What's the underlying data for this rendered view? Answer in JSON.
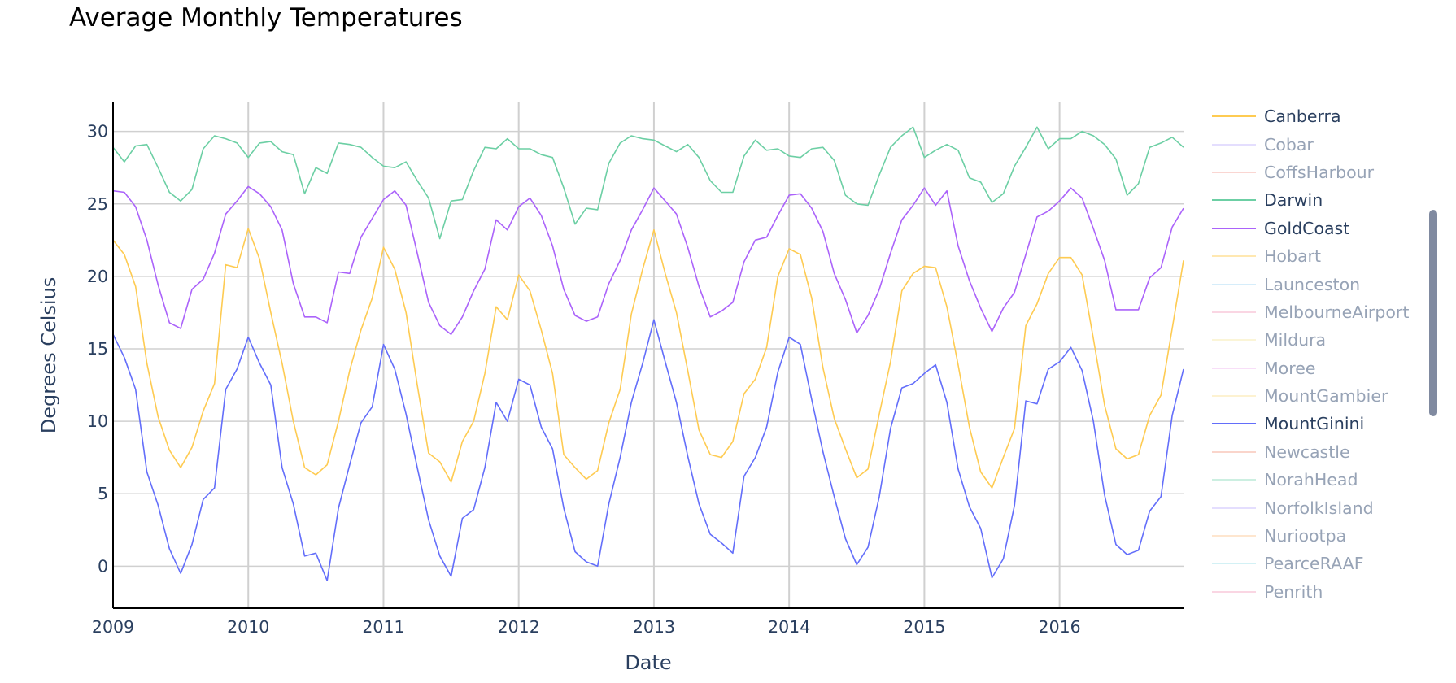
{
  "chart_data": {
    "type": "line",
    "title": "Average Monthly Temperatures",
    "xlabel": "Date",
    "ylabel": "Degrees Celsius",
    "x_start": "2009-01",
    "x_step": "month",
    "xlim": [
      "2009-01",
      "2016-12"
    ],
    "ylim": [
      -2.9,
      32
    ],
    "x_ticks": [
      "2009",
      "2010",
      "2011",
      "2012",
      "2013",
      "2014",
      "2015",
      "2016"
    ],
    "y_ticks": [
      0,
      5,
      10,
      15,
      20,
      25,
      30
    ],
    "grid": true,
    "legend_position": "right",
    "series": [
      {
        "name": "Canberra",
        "color": "#fecb52",
        "visible": true,
        "values": [
          22.5,
          21.5,
          19.3,
          14,
          10.3,
          8,
          6.8,
          8.2,
          10.7,
          12.6,
          20.8,
          20.6,
          23.3,
          21.2,
          17.5,
          14,
          10,
          6.8,
          6.3,
          7,
          10,
          13.5,
          16.3,
          18.5,
          22,
          20.5,
          17.5,
          12.5,
          7.8,
          7.2,
          5.8,
          8.6,
          10,
          13.3,
          17.9,
          17,
          20.1,
          19,
          16.3,
          13.3,
          7.7,
          6.8,
          6,
          6.6,
          9.9,
          12.2,
          17.4,
          20.5,
          23.2,
          20.2,
          17.5,
          13.5,
          9.4,
          7.7,
          7.5,
          8.6,
          11.9,
          12.9,
          15.1,
          20,
          21.9,
          21.5,
          18.5,
          13.7,
          10.2,
          8.1,
          6.1,
          6.7,
          10.5,
          14.1,
          19,
          20.2,
          20.7,
          20.6,
          17.9,
          13.9,
          9.6,
          6.5,
          5.4,
          7.5,
          9.5,
          16.6,
          18.1,
          20.2,
          21.3,
          21.3,
          20.1,
          15.7,
          11.1,
          8.1,
          7.4,
          7.7,
          10.4,
          11.8,
          16.4,
          21.1
        ]
      },
      {
        "name": "Cobar",
        "color": "#c4b5fd",
        "visible": false,
        "values": []
      },
      {
        "name": "CoffsHarbour",
        "color": "#f4a59c",
        "visible": false,
        "values": []
      },
      {
        "name": "Darwin",
        "color": "#6ccfa4",
        "visible": true,
        "values": [
          28.9,
          27.9,
          29,
          29.1,
          27.5,
          25.8,
          25.2,
          26,
          28.8,
          29.7,
          29.5,
          29.2,
          28.2,
          29.2,
          29.3,
          28.6,
          28.4,
          25.7,
          27.5,
          27.1,
          29.2,
          29.1,
          28.9,
          28.2,
          27.6,
          27.5,
          27.9,
          26.6,
          25.4,
          22.6,
          25.2,
          25.3,
          27.3,
          28.9,
          28.8,
          29.5,
          28.8,
          28.8,
          28.4,
          28.2,
          26.1,
          23.6,
          24.7,
          24.6,
          27.8,
          29.2,
          29.7,
          29.5,
          29.4,
          29,
          28.6,
          29.1,
          28.2,
          26.6,
          25.8,
          25.8,
          28.3,
          29.4,
          28.7,
          28.8,
          28.3,
          28.2,
          28.8,
          28.9,
          28,
          25.6,
          25,
          24.9,
          27,
          28.9,
          29.7,
          30.3,
          28.2,
          28.7,
          29.1,
          28.7,
          26.8,
          26.5,
          25.1,
          25.7,
          27.6,
          28.9,
          30.3,
          28.8,
          29.5,
          29.5,
          30,
          29.7,
          29.1,
          28.1,
          25.6,
          26.4,
          28.9,
          29.2,
          29.6,
          28.9
        ]
      },
      {
        "name": "GoldCoast",
        "color": "#ab63fa",
        "visible": true,
        "values": [
          25.9,
          25.8,
          24.8,
          22.5,
          19.4,
          16.8,
          16.4,
          19.1,
          19.8,
          21.6,
          24.3,
          25.2,
          26.2,
          25.7,
          24.8,
          23.2,
          19.5,
          17.2,
          17.2,
          16.8,
          20.3,
          20.2,
          22.7,
          24,
          25.3,
          25.9,
          24.9,
          21.6,
          18.2,
          16.6,
          16,
          17.2,
          19,
          20.5,
          23.9,
          23.2,
          24.8,
          25.4,
          24.2,
          22.1,
          19.1,
          17.3,
          16.9,
          17.2,
          19.5,
          21.1,
          23.2,
          24.6,
          26.1,
          25.2,
          24.3,
          22,
          19.3,
          17.2,
          17.6,
          18.2,
          21,
          22.5,
          22.7,
          24.2,
          25.6,
          25.7,
          24.7,
          23.1,
          20.2,
          18.4,
          16.1,
          17.3,
          19.1,
          21.6,
          23.9,
          24.9,
          26.1,
          24.9,
          25.9,
          22.1,
          19.7,
          17.8,
          16.2,
          17.8,
          18.9,
          21.5,
          24.1,
          24.5,
          25.2,
          26.1,
          25.4,
          23.3,
          21.1,
          17.7,
          17.7,
          17.7,
          19.9,
          20.6,
          23.4,
          24.7
        ]
      },
      {
        "name": "Hobart",
        "color": "#fecb52",
        "visible": false,
        "values": []
      },
      {
        "name": "Launceston",
        "color": "#a3d8f4",
        "visible": false,
        "values": []
      },
      {
        "name": "MelbourneAirport",
        "color": "#f4a3c0",
        "visible": false,
        "values": []
      },
      {
        "name": "Mildura",
        "color": "#f6e8a6",
        "visible": false,
        "values": []
      },
      {
        "name": "Moree",
        "color": "#f0b6f0",
        "visible": false,
        "values": []
      },
      {
        "name": "MountGambier",
        "color": "#fbe39a",
        "visible": false,
        "values": []
      },
      {
        "name": "MountGinini",
        "color": "#636efa",
        "visible": true,
        "values": [
          16,
          14.4,
          12.2,
          6.5,
          4.2,
          1.2,
          -0.5,
          1.5,
          4.6,
          5.4,
          12.2,
          13.6,
          15.8,
          14,
          12.5,
          6.8,
          4.3,
          0.7,
          0.9,
          -1,
          4,
          7,
          9.9,
          11,
          15.3,
          13.6,
          10.5,
          6.8,
          3.2,
          0.7,
          -0.7,
          3.3,
          3.9,
          6.8,
          11.3,
          10,
          12.9,
          12.5,
          9.6,
          8.1,
          4,
          1,
          0.3,
          0,
          4.3,
          7.5,
          11.3,
          14,
          17,
          14.1,
          11.3,
          7.6,
          4.3,
          2.2,
          1.6,
          0.9,
          6.2,
          7.5,
          9.6,
          13.4,
          15.8,
          15.3,
          11.5,
          7.9,
          4.8,
          1.9,
          0.1,
          1.3,
          4.8,
          9.5,
          12.3,
          12.6,
          13.3,
          13.9,
          11.3,
          6.7,
          4.1,
          2.6,
          -0.8,
          0.5,
          4.2,
          11.4,
          11.2,
          13.6,
          14.1,
          15.1,
          13.5,
          10,
          4.9,
          1.5,
          0.8,
          1.1,
          3.8,
          4.8,
          10.4,
          13.6
        ]
      },
      {
        "name": "Newcastle",
        "color": "#f4a28c",
        "visible": false,
        "values": []
      },
      {
        "name": "NorahHead",
        "color": "#8edcbc",
        "visible": false,
        "values": []
      },
      {
        "name": "NorfolkIsland",
        "color": "#c4b5fd",
        "visible": false,
        "values": []
      },
      {
        "name": "Nuriootpa",
        "color": "#fcc794",
        "visible": false,
        "values": []
      },
      {
        "name": "PearceRAAF",
        "color": "#9edfe8",
        "visible": false,
        "values": []
      },
      {
        "name": "Penrith",
        "color": "#f4a3c0",
        "visible": false,
        "values": []
      }
    ]
  }
}
